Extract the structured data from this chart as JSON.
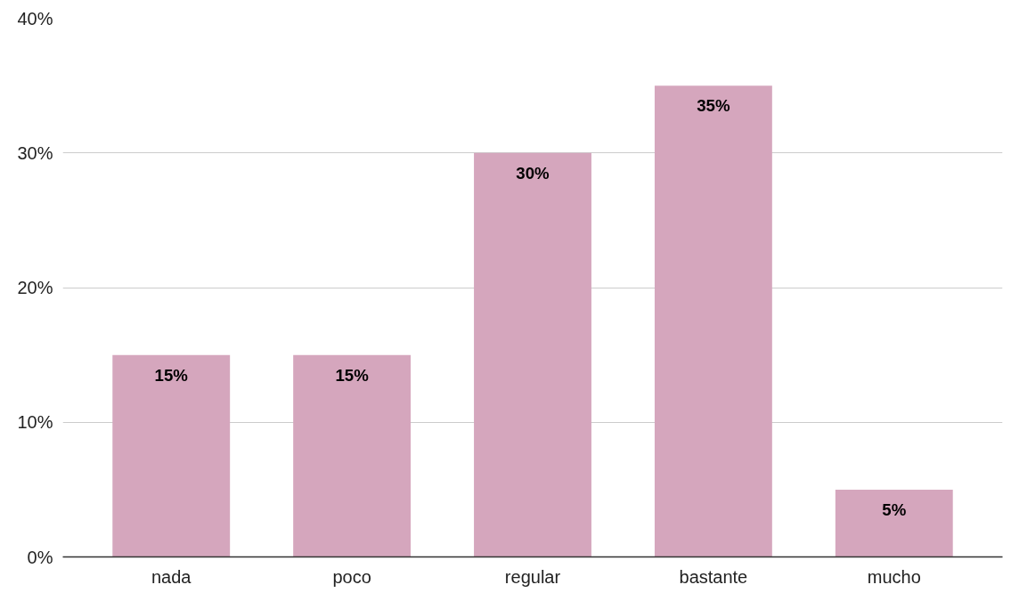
{
  "chart_data": {
    "type": "bar",
    "categories": [
      "nada",
      "poco",
      "regular",
      "bastante",
      "mucho"
    ],
    "values": [
      15,
      15,
      30,
      35,
      5
    ],
    "value_labels": [
      "15%",
      "15%",
      "30%",
      "35%",
      "5%"
    ],
    "color": "#d5a6bd",
    "ylim": [
      0,
      40
    ],
    "yticks": [
      {
        "value": 0,
        "label": "0%"
      },
      {
        "value": 10,
        "label": "10%"
      },
      {
        "value": 20,
        "label": "20%"
      },
      {
        "value": 30,
        "label": "30%"
      },
      {
        "value": 40,
        "label": "40%"
      }
    ],
    "grid": "y"
  }
}
